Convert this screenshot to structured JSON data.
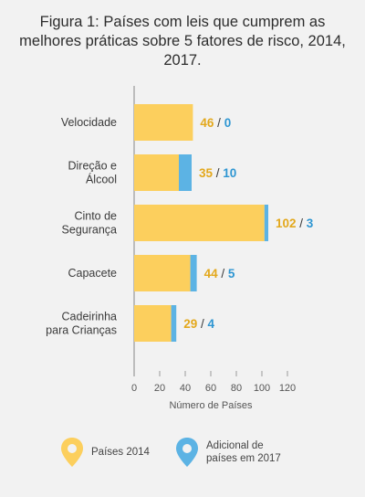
{
  "title": "Figura 1: Países com leis que cumprem as melhores práticas sobre 5 fatores de risco, 2014, 2017.",
  "legend": {
    "item1": "Países 2014",
    "item2": "Adicional de países em 2017"
  },
  "colors": {
    "y2014": "#fccf5d",
    "y2017": "#5cb3e4",
    "label2014": "#e3a81c",
    "label2017": "#2e96d2"
  },
  "chart_data": {
    "type": "bar",
    "orientation": "horizontal",
    "stacked": true,
    "title": "Figura 1: Países com leis que cumprem as melhores práticas sobre 5 fatores de risco, 2014, 2017.",
    "xlabel": "Número de Países",
    "ylabel": "",
    "xlim": [
      0,
      120
    ],
    "xticks": [
      0,
      20,
      40,
      60,
      80,
      100,
      120
    ],
    "categories": [
      [
        "Velocidade"
      ],
      [
        "Direção e",
        "Álcool"
      ],
      [
        "Cinto de",
        "Segurança"
      ],
      [
        "Capacete"
      ],
      [
        "Cadeirinha",
        "para Crianças"
      ]
    ],
    "series": [
      {
        "name": "Países 2014",
        "values": [
          46,
          35,
          102,
          44,
          29
        ]
      },
      {
        "name": "Adicional de países em 2017",
        "values": [
          0,
          10,
          3,
          5,
          4
        ]
      }
    ]
  }
}
